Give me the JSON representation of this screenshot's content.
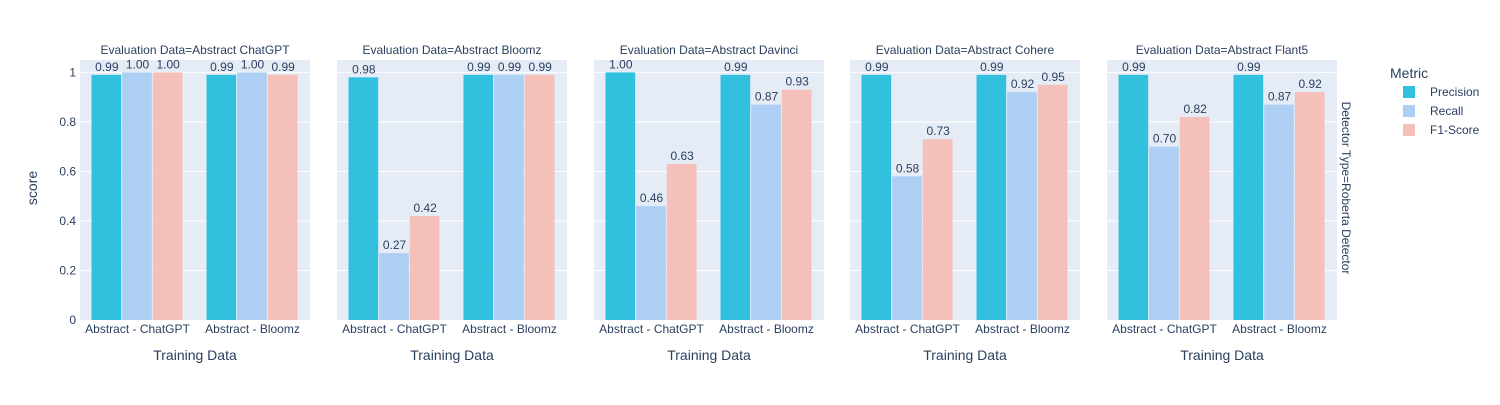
{
  "chart_data": {
    "type": "bar",
    "ylabel": "score",
    "xlabel": "Training Data",
    "ylim": [
      0,
      1.05
    ],
    "yticks": [
      0,
      0.2,
      0.4,
      0.6,
      0.8,
      1
    ],
    "ytick_labels": [
      "0",
      "0.2",
      "0.4",
      "0.6",
      "0.8",
      "1"
    ],
    "categories": [
      "Abstract - ChatGPT",
      "Abstract - Bloomz"
    ],
    "row_facet_label": "Detector Type=Roberta Detector",
    "legend": {
      "title": "Metric",
      "placement": "right",
      "items": [
        {
          "name": "Precision",
          "color": "#32C0DF"
        },
        {
          "name": "Recall",
          "color": "#AECFF4"
        },
        {
          "name": "F1-Score",
          "color": "#F6C0BA"
        }
      ]
    },
    "panels": [
      {
        "title": "Evaluation Data=Abstract ChatGPT",
        "series": [
          {
            "name": "Precision",
            "values": [
              0.99,
              0.99
            ],
            "labels": [
              "0.99",
              "0.99"
            ]
          },
          {
            "name": "Recall",
            "values": [
              1.0,
              1.0
            ],
            "labels": [
              "1.00",
              "1.00"
            ]
          },
          {
            "name": "F1-Score",
            "values": [
              1.0,
              0.99
            ],
            "labels": [
              "1.00",
              "0.99"
            ]
          }
        ]
      },
      {
        "title": "Evaluation Data=Abstract Bloomz",
        "series": [
          {
            "name": "Precision",
            "values": [
              0.98,
              0.99
            ],
            "labels": [
              "0.98",
              "0.99"
            ]
          },
          {
            "name": "Recall",
            "values": [
              0.27,
              0.99
            ],
            "labels": [
              "0.27",
              "0.99"
            ]
          },
          {
            "name": "F1-Score",
            "values": [
              0.42,
              0.99
            ],
            "labels": [
              "0.42",
              "0.99"
            ]
          }
        ]
      },
      {
        "title": "Evaluation Data=Abstract Davinci",
        "series": [
          {
            "name": "Precision",
            "values": [
              1.0,
              0.99
            ],
            "labels": [
              "1.00",
              "0.99"
            ]
          },
          {
            "name": "Recall",
            "values": [
              0.46,
              0.87
            ],
            "labels": [
              "0.46",
              "0.87"
            ]
          },
          {
            "name": "F1-Score",
            "values": [
              0.63,
              0.93
            ],
            "labels": [
              "0.63",
              "0.93"
            ]
          }
        ]
      },
      {
        "title": "Evaluation Data=Abstract Cohere",
        "series": [
          {
            "name": "Precision",
            "values": [
              0.99,
              0.99
            ],
            "labels": [
              "0.99",
              "0.99"
            ]
          },
          {
            "name": "Recall",
            "values": [
              0.58,
              0.92
            ],
            "labels": [
              "0.58",
              "0.92"
            ]
          },
          {
            "name": "F1-Score",
            "values": [
              0.73,
              0.95
            ],
            "labels": [
              "0.73",
              "0.95"
            ]
          }
        ]
      },
      {
        "title": "Evaluation Data=Abstract Flant5",
        "series": [
          {
            "name": "Precision",
            "values": [
              0.99,
              0.99
            ],
            "labels": [
              "0.99",
              "0.99"
            ]
          },
          {
            "name": "Recall",
            "values": [
              0.7,
              0.87
            ],
            "labels": [
              "0.70",
              "0.87"
            ]
          },
          {
            "name": "F1-Score",
            "values": [
              0.82,
              0.92
            ],
            "labels": [
              "0.82",
              "0.92"
            ]
          }
        ]
      }
    ]
  }
}
